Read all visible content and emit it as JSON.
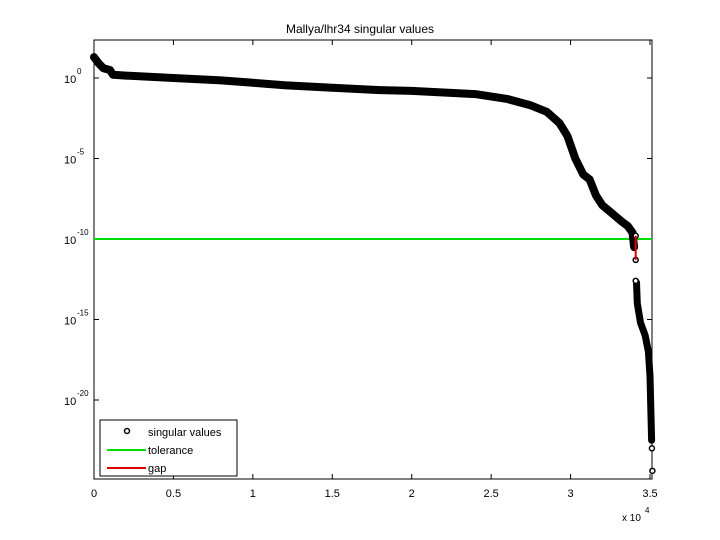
{
  "chart_data": {
    "type": "scatter",
    "title": "Mallya/lhr34 singular values",
    "xlabel": "",
    "ylabel": "",
    "x_multiplier_label": "x 10",
    "x_multiplier_exponent": "4",
    "xlim": [
      0,
      35152
    ],
    "ylim_log10": [
      -24.7,
      2.4
    ],
    "yscale": "log",
    "grid": false,
    "legend_position": "lower left",
    "x_ticks": [
      {
        "value": 0,
        "label": "0"
      },
      {
        "value": 5000,
        "label": "0.5"
      },
      {
        "value": 10000,
        "label": "1"
      },
      {
        "value": 15000,
        "label": "1.5"
      },
      {
        "value": 20000,
        "label": "2"
      },
      {
        "value": 25000,
        "label": "2.5"
      },
      {
        "value": 30000,
        "label": "3"
      },
      {
        "value": 35000,
        "label": "3.5"
      }
    ],
    "y_ticks": [
      {
        "log10": 0,
        "base": "10",
        "exp": "0"
      },
      {
        "log10": -5,
        "base": "10",
        "exp": "-5"
      },
      {
        "log10": -10,
        "base": "10",
        "exp": "-10"
      },
      {
        "log10": -15,
        "base": "10",
        "exp": "-15"
      },
      {
        "log10": -20,
        "base": "10",
        "exp": "-20"
      }
    ],
    "series": [
      {
        "name": "singular values",
        "style": "black circle markers",
        "color": "#000000",
        "points_x_log10y": [
          [
            0,
            1.3
          ],
          [
            300,
            0.9
          ],
          [
            600,
            0.6
          ],
          [
            1000,
            0.5
          ],
          [
            1200,
            0.2
          ],
          [
            2000,
            0.15
          ],
          [
            5000,
            0.0
          ],
          [
            8000,
            -0.15
          ],
          [
            10000,
            -0.3
          ],
          [
            12000,
            -0.45
          ],
          [
            15000,
            -0.6
          ],
          [
            18000,
            -0.75
          ],
          [
            20000,
            -0.8
          ],
          [
            22000,
            -0.9
          ],
          [
            24000,
            -1.0
          ],
          [
            26000,
            -1.3
          ],
          [
            27500,
            -1.7
          ],
          [
            28500,
            -2.1
          ],
          [
            29300,
            -2.8
          ],
          [
            29800,
            -3.6
          ],
          [
            30300,
            -5.0
          ],
          [
            30800,
            -6.0
          ],
          [
            31200,
            -6.3
          ],
          [
            31600,
            -7.3
          ],
          [
            32000,
            -7.9
          ],
          [
            32600,
            -8.4
          ],
          [
            33200,
            -8.9
          ],
          [
            33600,
            -9.2
          ],
          [
            33900,
            -9.6
          ],
          [
            34000,
            -10.5
          ],
          [
            34050,
            -11.3
          ],
          [
            34100,
            -11.5
          ],
          [
            34150,
            -12.7
          ],
          [
            34200,
            -14.0
          ],
          [
            34400,
            -15.2
          ],
          [
            34700,
            -16.0
          ],
          [
            34900,
            -17.0
          ],
          [
            35000,
            -18.5
          ],
          [
            35050,
            -20.5
          ],
          [
            35100,
            -22.5
          ],
          [
            35120,
            -23.0
          ],
          [
            35150,
            -24.4
          ]
        ]
      },
      {
        "name": "tolerance",
        "style": "horizontal line",
        "color": "#00dd00",
        "log10y": -10
      },
      {
        "name": "gap",
        "style": "vertical line segment",
        "color": "#dd0000",
        "x": 34100,
        "log10y_range": [
          -9.8,
          -11.3
        ]
      }
    ],
    "legend": [
      {
        "label": "singular values",
        "symbol": "circle",
        "color": "#000000"
      },
      {
        "label": "tolerance",
        "symbol": "line",
        "color": "#00dd00"
      },
      {
        "label": "gap",
        "symbol": "line",
        "color": "#dd0000"
      }
    ]
  }
}
